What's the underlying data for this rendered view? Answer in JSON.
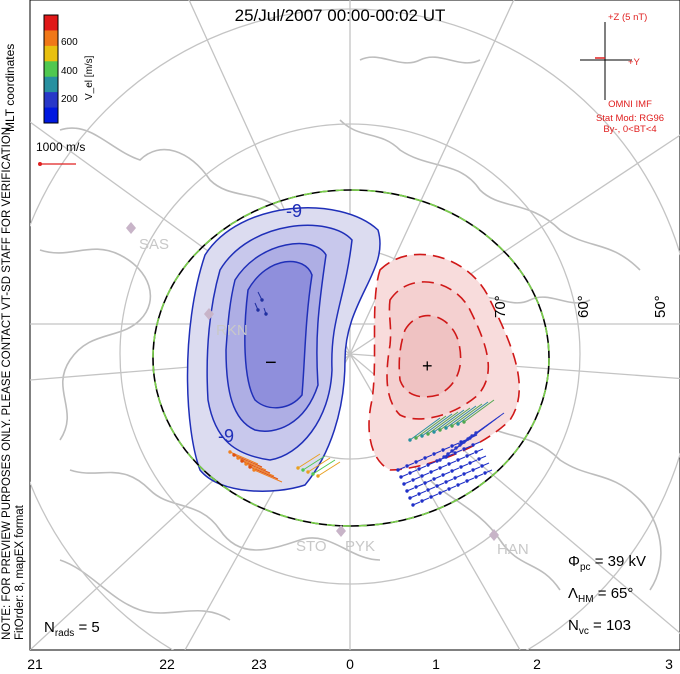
{
  "title": "25/Jul/2007 00:00-00:02 UT",
  "side_notes": {
    "coords": "MLT coordinates",
    "preview": "NOTE: FOR PREVIEW PURPOSES ONLY. PLEASE CONTACT VT-SD STAFF FOR VERIFICATION.",
    "fit": "FitOrder: 8, mapEX format"
  },
  "colorbar": {
    "title": "V_el [m/s]",
    "ticks": [
      "600",
      "400",
      "200"
    ],
    "colors": [
      "#e01818",
      "#f07818",
      "#e8c010",
      "#50c850",
      "#2890a0",
      "#2838c8",
      "#0018e0"
    ]
  },
  "reference_vector": {
    "label": "1000 m/s",
    "color": "#e02020"
  },
  "imf": {
    "z_label": "+Z (5 nT)",
    "y_label": "+Y",
    "source": "OMNI IMF",
    "model": "Stat Mod: RG96",
    "condition": "By-, 0<BT<4",
    "color": "#e02020"
  },
  "stations": [
    "SAS",
    "RKN",
    "STO",
    "PYK",
    "HAN"
  ],
  "latitude_labels": [
    "70°",
    "60°",
    "50°"
  ],
  "mlt_hours": [
    "21",
    "22",
    "23",
    "0",
    "1",
    "2",
    "3"
  ],
  "contours": {
    "negative_label": "-9",
    "negative_label2": "-9",
    "min_symbol": "−",
    "max_symbol": "+"
  },
  "stats": {
    "phi_pc": {
      "symbol": "Φ",
      "sub": "pc",
      "value": "= 39 kV"
    },
    "lambda_hm": {
      "symbol": "Λ",
      "sub": "HM",
      "value": "= 65°"
    },
    "n_vc": {
      "symbol": "N",
      "sub": "vc",
      "value": "= 103"
    },
    "n_rads": {
      "symbol": "N",
      "sub": "rads",
      "value": "= 5"
    }
  }
}
